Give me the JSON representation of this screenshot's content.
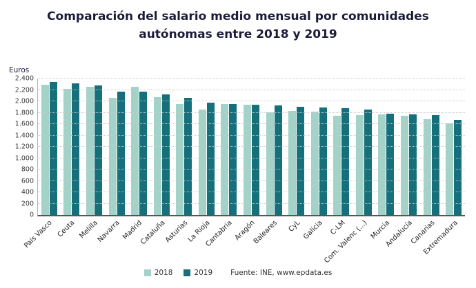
{
  "header": {
    "title_line1": "Comparación del salario medio mensual por comunidades",
    "title_line2": "autónomas entre 2018 y 2019"
  },
  "chart_data": {
    "type": "bar",
    "title": "Comparación del salario medio mensual por comunidades autónomas entre 2018 y 2019",
    "xlabel": "",
    "ylabel": "Euros",
    "ylim": [
      0,
      2400
    ],
    "y_tick_step": 200,
    "y_tick_labels": [
      "0",
      "200",
      "400",
      "600",
      "800",
      "1.000",
      "1.200",
      "1.400",
      "1.600",
      "1.800",
      "2.000",
      "2.200",
      "2.400"
    ],
    "grid": true,
    "grid_style": "dotted",
    "legend_position": "bottom",
    "categories": [
      "País Vasco",
      "Ceuta",
      "Melilla",
      "Navarra",
      "Madrid",
      "Cataluña",
      "Asturias",
      "La Rioja",
      "Cantabria",
      "Aragón",
      "Baleares",
      "CyL",
      "Galicia",
      "C-LM",
      "Com. Valenc (...)",
      "Murcia",
      "Andalucía",
      "Canarias",
      "Extremadura"
    ],
    "series": [
      {
        "name": "2018",
        "color": "#a3d2c8",
        "values": [
          2290,
          2220,
          2255,
          2060,
          2250,
          2075,
          1950,
          1850,
          1950,
          1945,
          1805,
          1830,
          1815,
          1745,
          1755,
          1765,
          1745,
          1685,
          1610
        ]
      },
      {
        "name": "2019",
        "color": "#15707b",
        "values": [
          2345,
          2310,
          2280,
          2175,
          2170,
          2125,
          2065,
          1980,
          1950,
          1935,
          1925,
          1905,
          1890,
          1875,
          1855,
          1780,
          1765,
          1755,
          1670
        ]
      }
    ],
    "source": "Fuente: INE, www.epdata.es"
  }
}
